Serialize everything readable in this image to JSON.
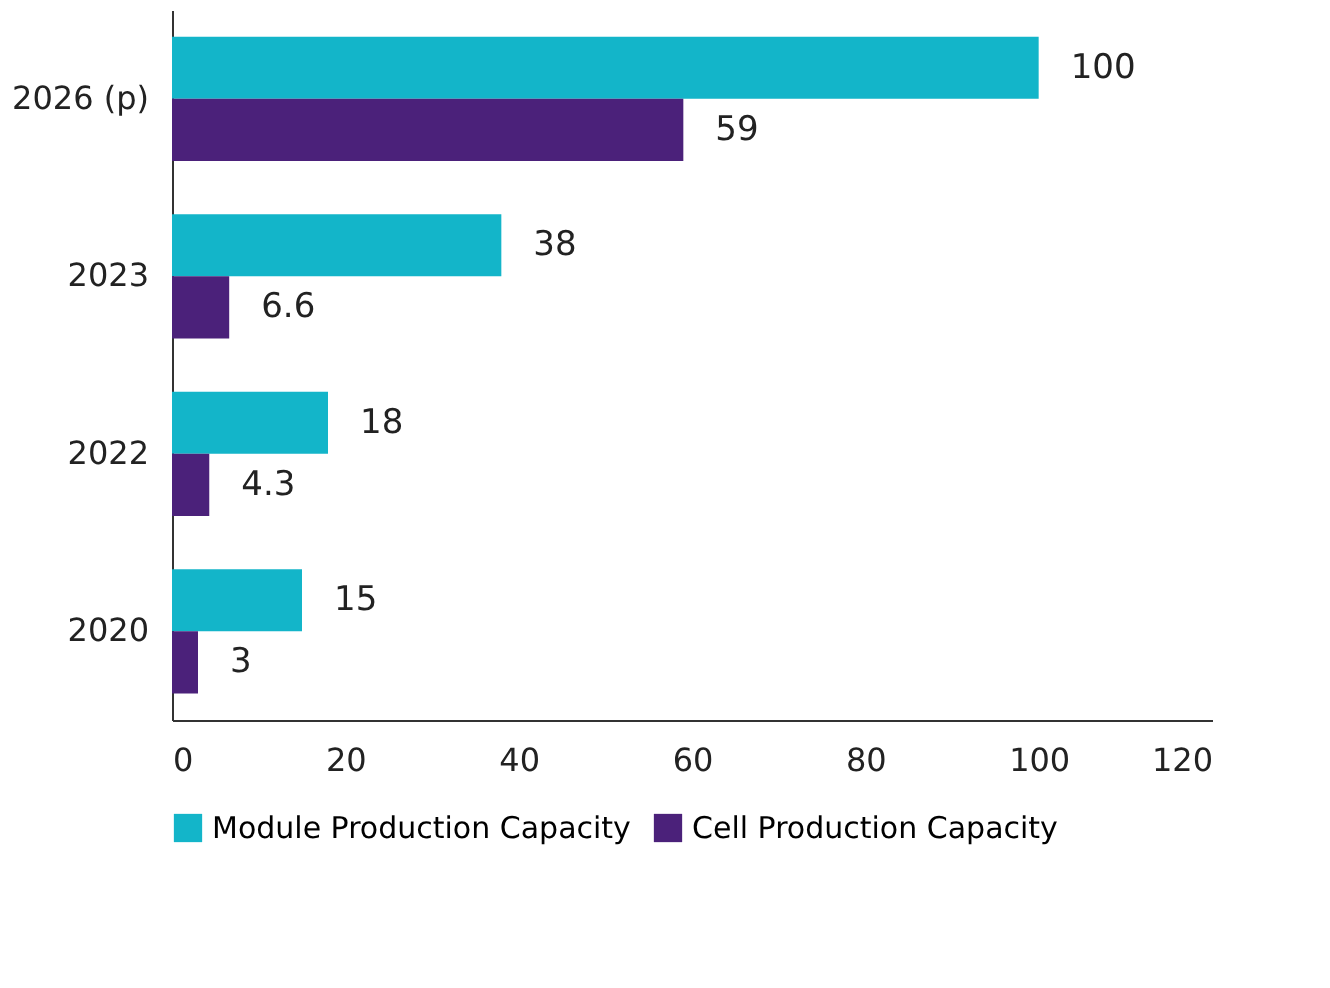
{
  "chart_data": {
    "type": "bar",
    "orientation": "horizontal",
    "categories": [
      "2026 (p)",
      "2023",
      "2022",
      "2020"
    ],
    "series": [
      {
        "name": "Module Production Capacity",
        "color": "#13b5c9",
        "values": [
          100,
          38,
          18,
          15
        ]
      },
      {
        "name": "Cell Production Capacity",
        "color": "#4b217a",
        "values": [
          59,
          6.6,
          4.3,
          3
        ]
      }
    ],
    "xlim": [
      0,
      120
    ],
    "xticks": [
      0,
      20,
      40,
      60,
      80,
      100,
      120
    ],
    "data_labels": true,
    "grid": false,
    "legend": "bottom"
  }
}
